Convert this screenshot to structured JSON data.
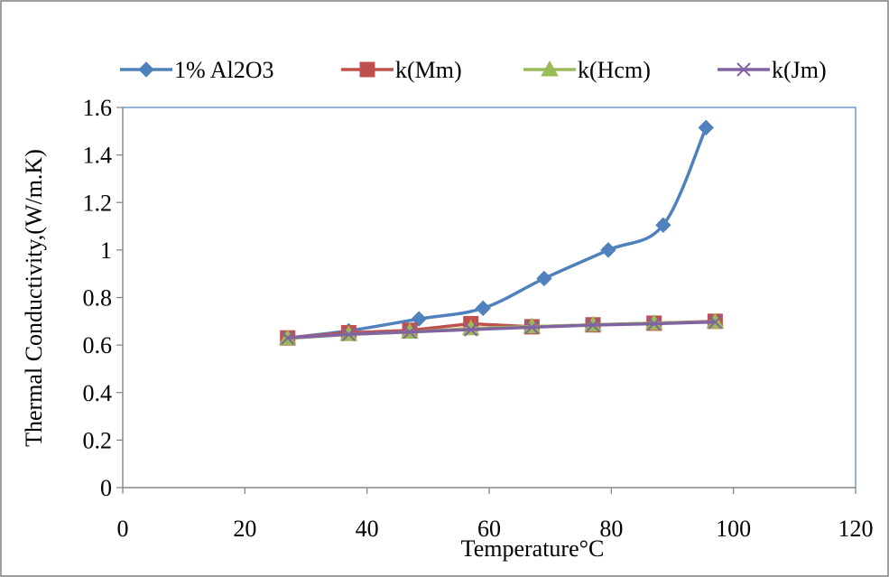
{
  "chart_data": {
    "type": "line",
    "title": "",
    "xlabel": "Temperature°C",
    "ylabel": "Thermal Conductivity,(W/m.K)",
    "xlim": [
      0,
      120
    ],
    "ylim": [
      0,
      1.6
    ],
    "x_ticks": [
      "0",
      "20",
      "40",
      "60",
      "80",
      "100",
      "120"
    ],
    "y_ticks": [
      "0",
      "0.2",
      "0.4",
      "0.6",
      "0.8",
      "1",
      "1.2",
      "1.4",
      "1.6"
    ],
    "grid": false,
    "legend_position": "top",
    "series": [
      {
        "name": "1% Al2O3",
        "marker": "diamond",
        "color": "#4F81BD",
        "smooth": true,
        "points": [
          [
            27,
            0.63
          ],
          [
            37,
            0.66
          ],
          [
            48.5,
            0.71
          ],
          [
            59,
            0.755
          ],
          [
            69,
            0.88
          ],
          [
            79.5,
            1.0
          ],
          [
            88.5,
            1.105
          ],
          [
            95.5,
            1.515
          ]
        ]
      },
      {
        "name": "k(Mm)",
        "marker": "square",
        "color": "#C0504D",
        "smooth": false,
        "points": [
          [
            27,
            0.63
          ],
          [
            37,
            0.652
          ],
          [
            47,
            0.662
          ],
          [
            57,
            0.69
          ],
          [
            67,
            0.677
          ],
          [
            77,
            0.685
          ],
          [
            87,
            0.692
          ],
          [
            97,
            0.7
          ]
        ]
      },
      {
        "name": "k(Hcm)",
        "marker": "triangle",
        "color": "#9BBB59",
        "smooth": false,
        "points": [
          [
            27,
            0.628
          ],
          [
            37,
            0.645
          ],
          [
            47,
            0.655
          ],
          [
            57,
            0.67
          ],
          [
            67,
            0.678
          ],
          [
            77,
            0.685
          ],
          [
            87,
            0.692
          ],
          [
            97,
            0.698
          ]
        ]
      },
      {
        "name": "k(Jm)",
        "marker": "x",
        "color": "#8064A2",
        "smooth": false,
        "points": [
          [
            27,
            0.63
          ],
          [
            37,
            0.645
          ],
          [
            47,
            0.655
          ],
          [
            57,
            0.665
          ],
          [
            67,
            0.675
          ],
          [
            77,
            0.684
          ],
          [
            87,
            0.69
          ],
          [
            97,
            0.697
          ]
        ]
      }
    ]
  }
}
